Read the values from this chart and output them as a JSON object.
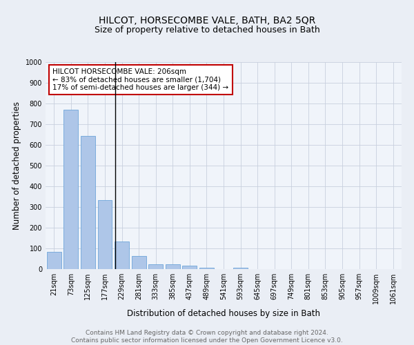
{
  "title": "HILCOT, HORSECOMBE VALE, BATH, BA2 5QR",
  "subtitle": "Size of property relative to detached houses in Bath",
  "xlabel": "Distribution of detached houses by size in Bath",
  "ylabel": "Number of detached properties",
  "footnote": "Contains HM Land Registry data © Crown copyright and database right 2024.\nContains public sector information licensed under the Open Government Licence v3.0.",
  "bar_labels": [
    "21sqm",
    "73sqm",
    "125sqm",
    "177sqm",
    "229sqm",
    "281sqm",
    "333sqm",
    "385sqm",
    "437sqm",
    "489sqm",
    "541sqm",
    "593sqm",
    "645sqm",
    "697sqm",
    "749sqm",
    "801sqm",
    "853sqm",
    "905sqm",
    "957sqm",
    "1009sqm",
    "1061sqm"
  ],
  "bar_values": [
    83,
    770,
    642,
    335,
    135,
    62,
    25,
    22,
    17,
    8,
    0,
    8,
    0,
    0,
    0,
    0,
    0,
    0,
    0,
    0,
    0
  ],
  "bar_color": "#aec6e8",
  "bar_edge_color": "#5b9bd5",
  "annotation_text": "HILCOT HORSECOMBE VALE: 206sqm\n← 83% of detached houses are smaller (1,704)\n17% of semi-detached houses are larger (344) →",
  "annotation_box_color": "white",
  "annotation_box_edge_color": "#c00000",
  "vline_x": 3.6,
  "ylim": [
    0,
    1000
  ],
  "yticks": [
    0,
    100,
    200,
    300,
    400,
    500,
    600,
    700,
    800,
    900,
    1000
  ],
  "bg_color": "#eaeef5",
  "plot_bg_color": "#f0f4fa",
  "grid_color": "#c8d0de",
  "title_fontsize": 10,
  "subtitle_fontsize": 9,
  "axis_label_fontsize": 8.5,
  "tick_fontsize": 7,
  "annotation_fontsize": 7.5,
  "footnote_fontsize": 6.5
}
